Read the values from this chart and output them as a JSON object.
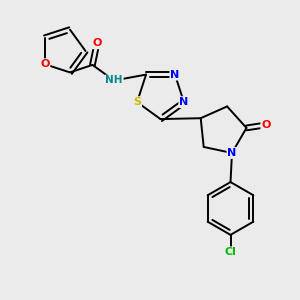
{
  "bg_color": "#ebebeb",
  "bond_color": "#000000",
  "atom_colors": {
    "O": "#ff0000",
    "N": "#0000ff",
    "S": "#ccbb00",
    "Cl": "#00bb00",
    "H": "#008888",
    "C": "#000000"
  },
  "figsize": [
    3.0,
    3.0
  ],
  "dpi": 100
}
